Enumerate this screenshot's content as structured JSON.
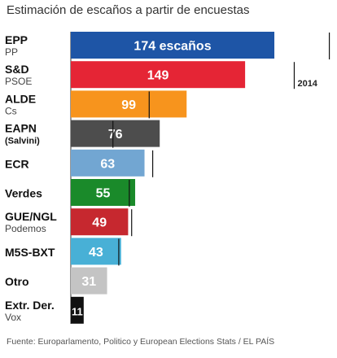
{
  "chart_data": {
    "type": "bar",
    "orientation": "horizontal",
    "title": "Estimación de escaños a partir de encuestas",
    "categories": [
      {
        "group": "EPP",
        "sub": "PP"
      },
      {
        "group": "S&D",
        "sub": "PSOE"
      },
      {
        "group": "ALDE",
        "sub": "Cs"
      },
      {
        "group": "EAPN",
        "sub": "(Salvini)"
      },
      {
        "group": "ECR",
        "sub": ""
      },
      {
        "group": "Verdes",
        "sub": ""
      },
      {
        "group": "GUE/NGL",
        "sub": "Podemos"
      },
      {
        "group": "M5S-BXT",
        "sub": ""
      },
      {
        "group": "Otro",
        "sub": ""
      },
      {
        "group": "Extr. Der.",
        "sub": "Vox"
      }
    ],
    "series": [
      {
        "values": [
          174,
          149,
          99,
          76,
          63,
          55,
          49,
          43,
          31,
          11
        ],
        "value_labels": [
          "174 escaños",
          "149",
          "99",
          "76",
          "63",
          "55",
          "49",
          "43",
          "31",
          "11"
        ],
        "colors": [
          "#1e55a6",
          "#e52535",
          "#f7941d",
          "#4d4d4d",
          "#72a6d2",
          "#1a8a2a",
          "#c6282f",
          "#48b0d6",
          "#c4c4c4",
          "#111111"
        ]
      },
      {
        "name": "2014",
        "type": "marker",
        "values": [
          221,
          191,
          67,
          36,
          70,
          50,
          52,
          41,
          null,
          null
        ]
      }
    ],
    "xlim": [
      0,
      221
    ],
    "legend": {
      "label": "2014",
      "placement": "right"
    },
    "grid": false
  },
  "footnote": "Fuente: Europarlamento, Politico y European Elections Stats / EL PAÍS"
}
